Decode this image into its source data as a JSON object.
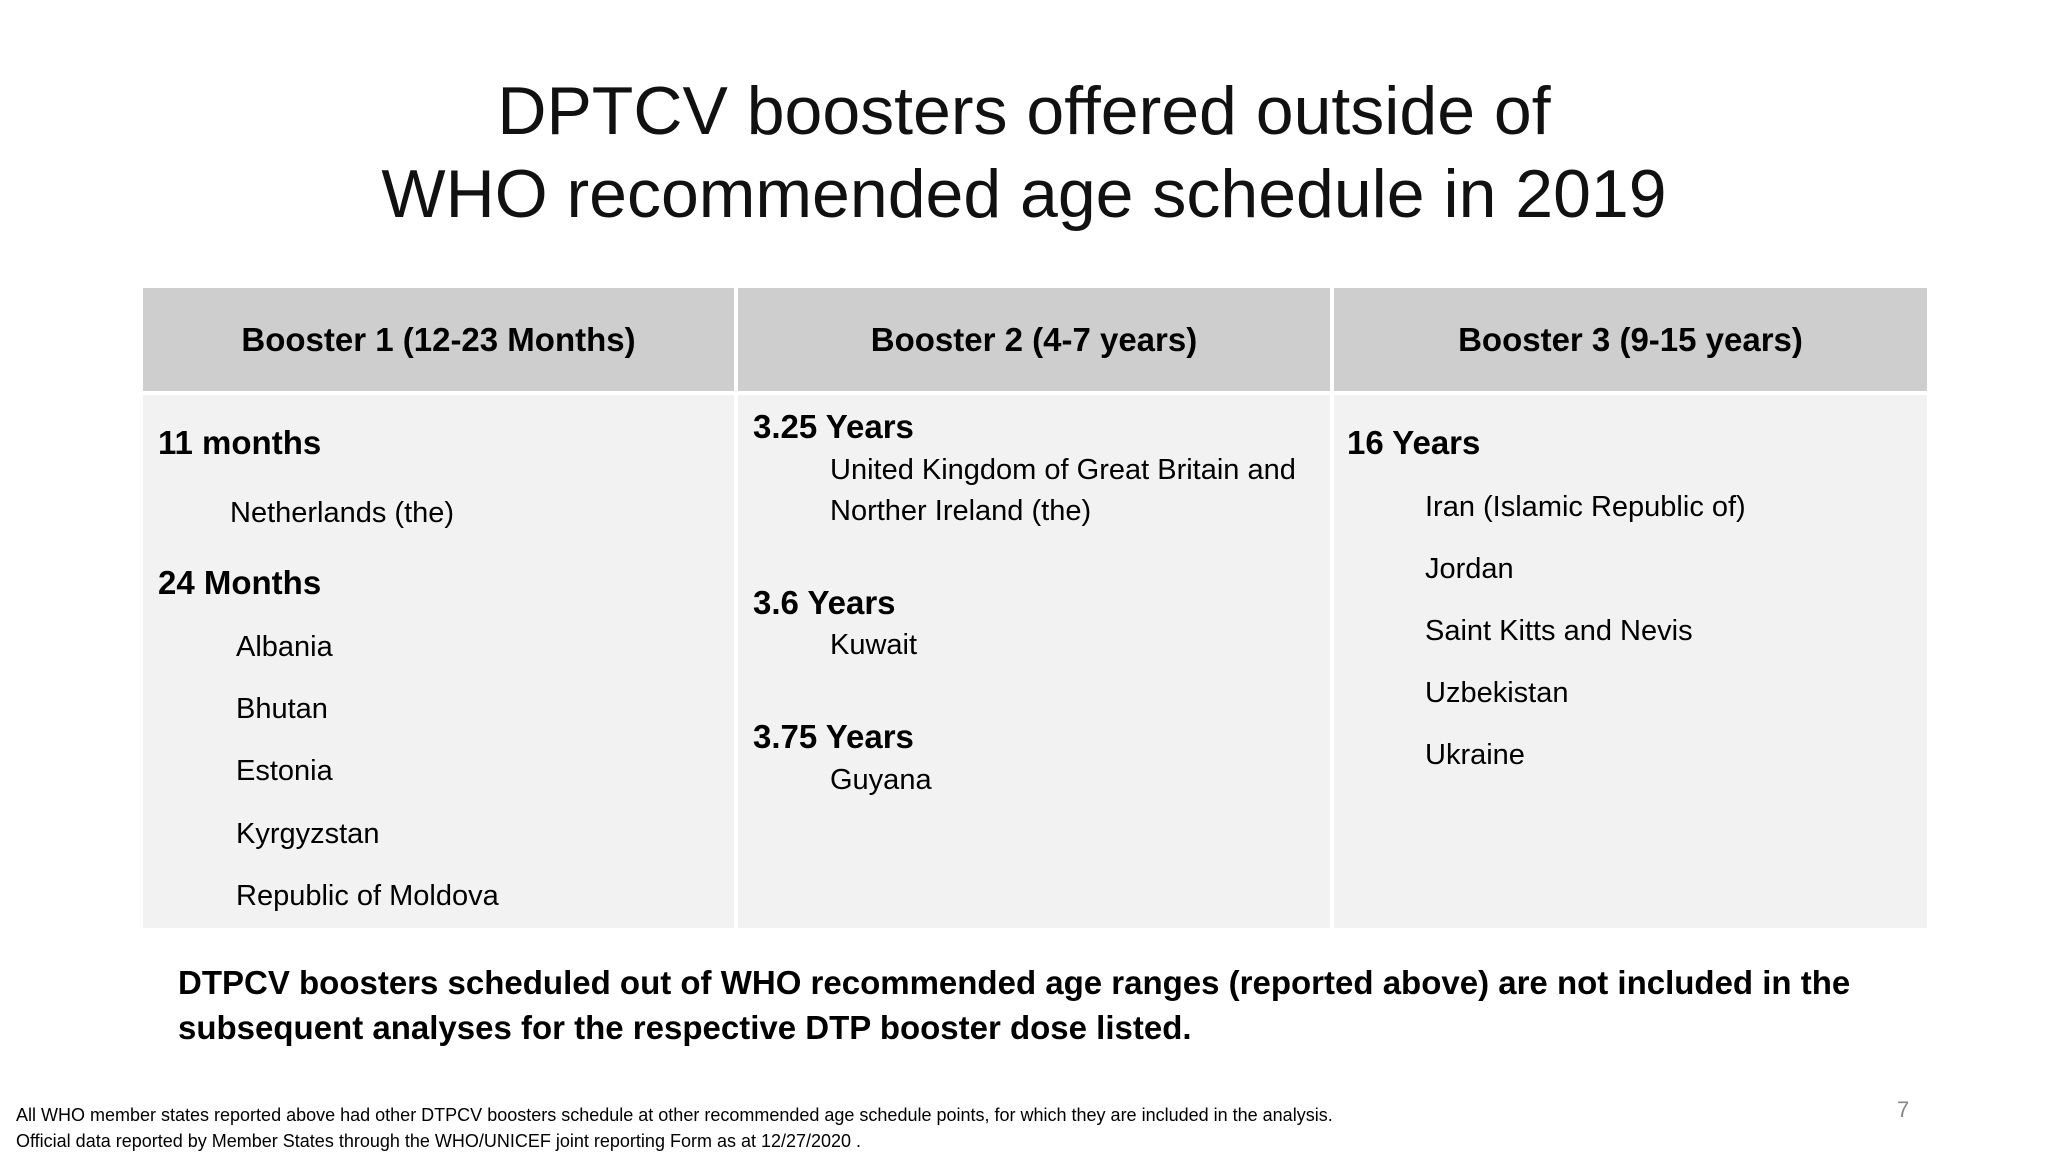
{
  "title": [
    "DPTCV boosters offered outside of",
    "WHO recommended age schedule in 2019"
  ],
  "table": {
    "columns": [
      {
        "header": "Booster 1 (12-23 Months)",
        "groups": [
          {
            "label": "11 months",
            "items": [
              "Netherlands (the)"
            ]
          },
          {
            "label": "24 Months",
            "items": [
              "Albania",
              "Bhutan",
              "Estonia",
              "Kyrgyzstan",
              "Republic of Moldova"
            ]
          }
        ]
      },
      {
        "header": "Booster 2 (4-7 years)",
        "groups": [
          {
            "label": "3.25 Years",
            "items": [
              "United Kingdom of Great Britain and Norther Ireland (the)"
            ]
          },
          {
            "label": "3.6 Years",
            "items": [
              "Kuwait"
            ]
          },
          {
            "label": "3.75 Years",
            "items": [
              "Guyana"
            ]
          }
        ]
      },
      {
        "header": "Booster 3 (9-15 years)",
        "groups": [
          {
            "label": "16 Years",
            "items": [
              "Iran (Islamic Republic of)",
              "Jordan",
              "Saint Kitts and Nevis",
              "Uzbekistan",
              "Ukraine"
            ]
          }
        ]
      }
    ]
  },
  "note": [
    "DTPCV boosters scheduled out of WHO recommended age ranges (reported above) are not included in the",
    "subsequent analyses for the respective DTP booster dose listed."
  ],
  "footnotes": [
    "All WHO member states reported above had other DTPCV boosters schedule at other recommended age schedule points, for which they are included in the analysis.",
    "Official data reported by Member States through the WHO/UNICEF joint reporting Form as at 12/27/2020 ."
  ],
  "page_number": "7"
}
